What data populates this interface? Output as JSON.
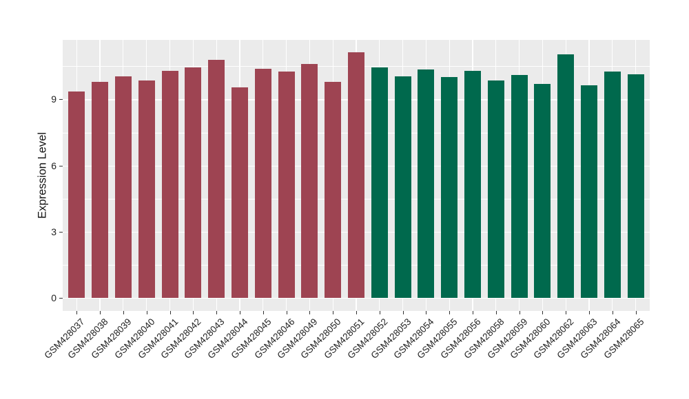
{
  "chart_data": {
    "type": "bar",
    "title": "",
    "xlabel": "",
    "ylabel": "Expression Level",
    "categories": [
      "GSM428037",
      "GSM428038",
      "GSM428039",
      "GSM428040",
      "GSM428041",
      "GSM428042",
      "GSM428043",
      "GSM428044",
      "GSM428045",
      "GSM428046",
      "GSM428049",
      "GSM428050",
      "GSM428051",
      "GSM428052",
      "GSM428053",
      "GSM428054",
      "GSM428055",
      "GSM428056",
      "GSM428058",
      "GSM428059",
      "GSM428060",
      "GSM428062",
      "GSM428063",
      "GSM428064",
      "GSM428065"
    ],
    "values": [
      9.35,
      9.8,
      10.05,
      9.85,
      10.3,
      10.45,
      10.8,
      9.55,
      10.4,
      10.25,
      10.6,
      9.8,
      11.15,
      10.45,
      10.05,
      10.35,
      10.0,
      10.3,
      9.85,
      10.1,
      9.7,
      11.05,
      9.65,
      10.25,
      10.15
    ],
    "bar_color_groups": [
      {
        "color": "#9E4452",
        "from_index": 0,
        "to_index": 12
      },
      {
        "color": "#00694D",
        "from_index": 13,
        "to_index": 24
      }
    ],
    "yticks": [
      0,
      3,
      6,
      9
    ],
    "minor_yticks": [
      1.5,
      4.5,
      7.5,
      10.5
    ],
    "ylim": [
      -0.6,
      11.7
    ],
    "legend_position": "none",
    "grid": "on",
    "panel_background": "#EBEBEB",
    "gridline_color": "#FFFFFF",
    "axis_text_color": "#222222",
    "tick_mark_color": "#333333"
  }
}
